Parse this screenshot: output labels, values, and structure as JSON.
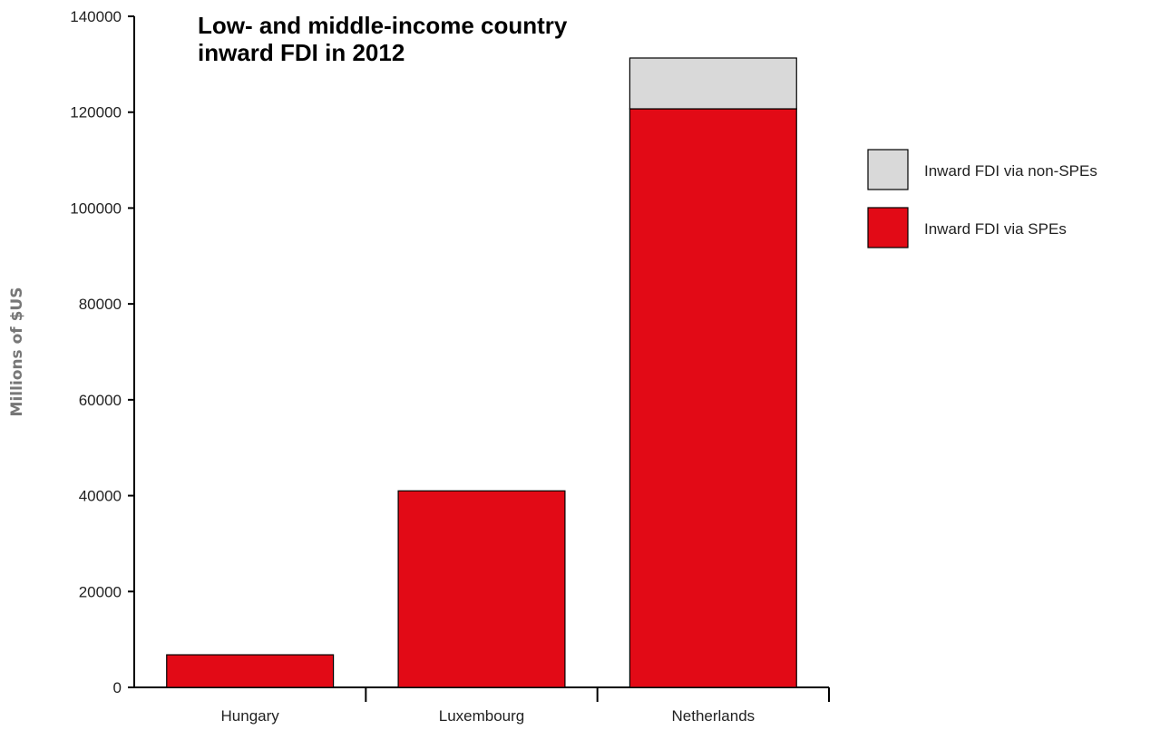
{
  "chart_data": {
    "type": "bar",
    "stacked": true,
    "title_lines": [
      "Low- and middle-income country",
      "inward FDI in 2012"
    ],
    "ylabel": "Millions of $US",
    "xlabel": "",
    "categories": [
      "Hungary",
      "Luxembourg",
      "Netherlands"
    ],
    "ylim": [
      0,
      140000
    ],
    "yticks": [
      0,
      20000,
      40000,
      60000,
      80000,
      100000,
      120000,
      140000
    ],
    "series": [
      {
        "name": "Inward FDI via SPEs",
        "color": "#e20a16",
        "values": [
          6800,
          41000,
          120700
        ]
      },
      {
        "name": "Inward FDI via non-SPEs",
        "color": "#d9d9d9",
        "values": [
          0,
          0,
          10600
        ]
      }
    ],
    "legend_order": [
      1,
      0
    ],
    "legend_position": "right",
    "grid": false
  }
}
